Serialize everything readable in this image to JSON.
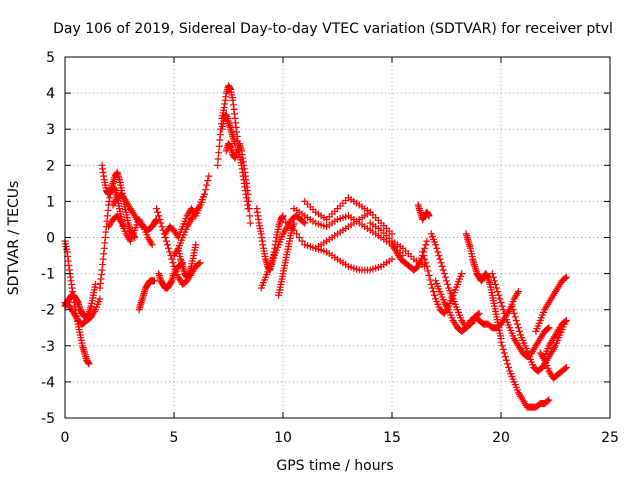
{
  "chart_data": {
    "type": "scatter",
    "title": "Day 106 of 2019, Sidereal Day-to-day VTEC variation (SDTVAR) for receiver ptvl",
    "xlabel": "GPS time / hours",
    "ylabel": "SDTVAR / TECUs",
    "xlim": [
      0,
      25
    ],
    "ylim": [
      -5,
      5
    ],
    "xticks": [
      "0",
      "5",
      "10",
      "15",
      "20",
      "25"
    ],
    "yticks": [
      "-5",
      "-4",
      "-3",
      "-2",
      "-1",
      "0",
      "1",
      "2",
      "3",
      "4",
      "5"
    ],
    "grid": true,
    "marker": "+",
    "color": "#ff0000",
    "series": [
      {
        "name": "s1",
        "x": [
          0.0,
          0.1,
          0.2,
          0.3,
          0.4,
          0.5,
          0.6,
          0.7,
          0.8,
          0.9,
          1.0,
          1.1
        ],
        "y": [
          -0.1,
          -0.4,
          -0.9,
          -1.3,
          -1.7,
          -2.1,
          -2.4,
          -2.7,
          -3.0,
          -3.2,
          -3.4,
          -3.5
        ]
      },
      {
        "name": "s2",
        "x": [
          0.0,
          0.1,
          0.2,
          0.3,
          0.4,
          0.5,
          0.6,
          0.7,
          0.8,
          0.9,
          1.0,
          1.1,
          1.2,
          1.3,
          1.4
        ],
        "y": [
          -1.9,
          -1.8,
          -1.7,
          -1.6,
          -1.6,
          -1.7,
          -1.8,
          -2.0,
          -2.1,
          -2.2,
          -2.2,
          -2.1,
          -1.9,
          -1.6,
          -1.3
        ]
      },
      {
        "name": "s3",
        "x": [
          0.0,
          0.2,
          0.4,
          0.6,
          0.8,
          1.0,
          1.2,
          1.4,
          1.6
        ],
        "y": [
          -1.8,
          -1.9,
          -2.1,
          -2.3,
          -2.4,
          -2.3,
          -2.2,
          -2.0,
          -1.7
        ]
      },
      {
        "name": "s4",
        "x": [
          1.6,
          1.7,
          1.8,
          1.9,
          2.0,
          2.1,
          2.2,
          2.3,
          2.4,
          2.5,
          2.6,
          2.7
        ],
        "y": [
          -1.4,
          -0.9,
          -0.3,
          0.3,
          0.9,
          1.3,
          1.4,
          1.3,
          1.1,
          0.8,
          0.5,
          0.3
        ]
      },
      {
        "name": "s5",
        "x": [
          1.7,
          1.8,
          1.9,
          2.0,
          2.1,
          2.2,
          2.3,
          2.4,
          2.5,
          2.6,
          2.7,
          2.8,
          2.9,
          3.0,
          3.1,
          3.2
        ],
        "y": [
          2.0,
          1.6,
          1.3,
          1.2,
          1.3,
          1.5,
          1.7,
          1.8,
          1.6,
          1.3,
          1.0,
          0.7,
          0.4,
          0.2,
          0.1,
          0.0
        ]
      },
      {
        "name": "s6",
        "x": [
          2.0,
          2.2,
          2.4,
          2.6,
          2.8,
          3.0,
          3.2,
          3.4,
          3.6,
          3.8,
          4.0
        ],
        "y": [
          0.3,
          0.5,
          0.6,
          0.4,
          0.1,
          -0.1,
          0.2,
          0.5,
          0.3,
          0.0,
          -0.2
        ]
      },
      {
        "name": "s7",
        "x": [
          2.2,
          2.4,
          2.6,
          2.8,
          3.0,
          3.2,
          3.4,
          3.6,
          3.8,
          4.0,
          4.1,
          4.2
        ],
        "y": [
          0.9,
          1.1,
          1.2,
          1.0,
          0.8,
          0.6,
          0.4,
          0.3,
          0.2,
          0.3,
          0.4,
          0.5
        ]
      },
      {
        "name": "s8",
        "x": [
          3.4,
          3.5,
          3.6,
          3.7,
          3.8,
          3.9,
          4.0,
          4.1
        ],
        "y": [
          -2.0,
          -1.8,
          -1.6,
          -1.4,
          -1.3,
          -1.2,
          -1.2,
          -1.2
        ]
      },
      {
        "name": "s9",
        "x": [
          4.2,
          4.4,
          4.6,
          4.8,
          5.0,
          5.2,
          5.4,
          5.6,
          5.8,
          6.0,
          6.2
        ],
        "y": [
          0.8,
          0.4,
          0.0,
          -0.4,
          -0.8,
          -1.1,
          -1.3,
          -1.2,
          -1.0,
          -0.8,
          -0.7
        ]
      },
      {
        "name": "s10",
        "x": [
          4.3,
          4.4,
          4.5,
          4.6,
          4.7,
          4.8,
          4.9,
          5.0,
          5.2,
          5.4
        ],
        "y": [
          -1.0,
          -1.2,
          -1.3,
          -1.4,
          -1.4,
          -1.3,
          -1.2,
          -1.0,
          -0.8,
          -0.7
        ]
      },
      {
        "name": "s11",
        "x": [
          4.6,
          4.8,
          5.0,
          5.2,
          5.4,
          5.6,
          5.8,
          6.0,
          6.2,
          6.4
        ],
        "y": [
          0.1,
          0.3,
          0.2,
          0.0,
          0.3,
          0.6,
          0.8,
          0.6,
          0.9,
          1.2
        ]
      },
      {
        "name": "s12",
        "x": [
          5.0,
          5.2,
          5.4,
          5.6,
          5.8,
          6.0,
          6.2,
          6.4,
          6.6
        ],
        "y": [
          -0.5,
          -0.3,
          0.0,
          0.3,
          0.5,
          0.7,
          0.9,
          1.2,
          1.7
        ]
      },
      {
        "name": "s13",
        "x": [
          5.2,
          5.3,
          5.4,
          5.5,
          5.6,
          5.7,
          5.8,
          5.9,
          6.0
        ],
        "y": [
          -0.3,
          -0.6,
          -0.8,
          -1.0,
          -1.1,
          -1.0,
          -0.8,
          -0.5,
          -0.2
        ]
      },
      {
        "name": "s14",
        "x": [
          7.0,
          7.1,
          7.2,
          7.3,
          7.4,
          7.5,
          7.6,
          7.7,
          7.8,
          7.9,
          8.0,
          8.1,
          8.2,
          8.3,
          8.4
        ],
        "y": [
          2.0,
          2.7,
          3.3,
          3.6,
          4.0,
          4.2,
          4.1,
          3.8,
          3.3,
          2.8,
          2.3,
          2.0,
          1.6,
          1.2,
          0.8
        ]
      },
      {
        "name": "s15",
        "x": [
          7.4,
          7.5,
          7.6,
          7.7,
          7.8,
          7.9,
          8.0,
          8.1,
          8.2,
          8.3,
          8.4,
          8.5
        ],
        "y": [
          2.4,
          2.6,
          2.5,
          2.3,
          2.2,
          2.4,
          2.6,
          2.4,
          2.0,
          1.6,
          1.2,
          0.4
        ]
      },
      {
        "name": "s16",
        "x": [
          7.2,
          7.3,
          7.4,
          7.5,
          7.6,
          7.7,
          7.8
        ],
        "y": [
          3.0,
          3.3,
          3.4,
          3.2,
          3.0,
          2.8,
          2.6
        ]
      },
      {
        "name": "s17",
        "x": [
          8.8,
          8.9,
          9.0,
          9.1,
          9.2,
          9.3,
          9.4,
          9.5,
          9.6,
          9.7,
          9.8,
          9.9,
          10.0
        ],
        "y": [
          0.8,
          0.4,
          0.1,
          -0.3,
          -0.6,
          -0.8,
          -0.9,
          -0.7,
          -0.4,
          0.0,
          0.3,
          0.5,
          0.6
        ]
      },
      {
        "name": "s18",
        "x": [
          9.0,
          9.2,
          9.4,
          9.6,
          9.8,
          10.0,
          10.2,
          10.4,
          10.6,
          10.8,
          11.0
        ],
        "y": [
          -1.4,
          -1.1,
          -0.8,
          -0.5,
          -0.2,
          0.1,
          0.3,
          0.5,
          0.6,
          0.5,
          0.4
        ]
      },
      {
        "name": "s19",
        "x": [
          9.8,
          9.9,
          10.0,
          10.1,
          10.2,
          10.3,
          10.4,
          10.5
        ],
        "y": [
          -1.6,
          -1.3,
          -1.0,
          -0.7,
          -0.4,
          -0.1,
          0.2,
          0.4
        ]
      },
      {
        "name": "s20",
        "x": [
          10.0,
          10.5,
          11.0,
          11.5,
          12.0,
          12.5,
          13.0,
          13.5,
          14.0,
          14.5,
          15.0
        ],
        "y": [
          0.5,
          0.2,
          -0.2,
          -0.3,
          -0.4,
          -0.6,
          -0.8,
          -0.9,
          -0.9,
          -0.8,
          -0.6
        ]
      },
      {
        "name": "s21",
        "x": [
          10.5,
          11.0,
          11.5,
          12.0,
          12.5,
          13.0,
          13.5,
          14.0,
          14.5,
          15.0,
          15.5
        ],
        "y": [
          0.8,
          0.6,
          0.4,
          0.3,
          0.5,
          0.6,
          0.4,
          0.2,
          0.0,
          -0.2,
          -0.5
        ]
      },
      {
        "name": "s22",
        "x": [
          11.0,
          11.5,
          12.0,
          12.5,
          13.0,
          13.5,
          14.0,
          14.5,
          15.0
        ],
        "y": [
          1.0,
          0.7,
          0.5,
          0.8,
          1.1,
          0.9,
          0.7,
          0.4,
          0.1
        ]
      },
      {
        "name": "s23",
        "x": [
          11.5,
          12.0,
          12.5,
          13.0,
          13.5,
          14.0
        ],
        "y": [
          -0.3,
          -0.1,
          0.1,
          0.3,
          0.5,
          0.7
        ]
      },
      {
        "name": "s24",
        "x": [
          14.0,
          14.5,
          15.0,
          15.5,
          16.0,
          16.5
        ],
        "y": [
          0.4,
          0.2,
          -0.1,
          -0.3,
          -0.6,
          -0.8
        ]
      },
      {
        "name": "s25",
        "x": [
          15.0,
          15.2,
          15.4,
          15.6,
          15.8,
          16.0,
          16.2,
          16.4,
          16.6
        ],
        "y": [
          -0.2,
          -0.4,
          -0.6,
          -0.7,
          -0.8,
          -0.9,
          -0.8,
          -0.5,
          -0.1
        ]
      },
      {
        "name": "s26",
        "x": [
          16.2,
          16.3,
          16.4,
          16.5,
          16.6,
          16.7
        ],
        "y": [
          0.9,
          0.7,
          0.5,
          0.6,
          0.7,
          0.6
        ]
      },
      {
        "name": "s27",
        "x": [
          16.4,
          16.6,
          16.8,
          17.0,
          17.2,
          17.4,
          17.6,
          17.8,
          18.0,
          18.2
        ],
        "y": [
          -0.4,
          -0.8,
          -1.3,
          -1.7,
          -2.0,
          -2.1,
          -1.9,
          -1.6,
          -1.3,
          -1.0
        ]
      },
      {
        "name": "s28",
        "x": [
          16.8,
          17.0,
          17.2,
          17.4,
          17.6,
          17.8,
          18.0,
          18.2,
          18.4,
          18.6,
          18.8,
          19.0
        ],
        "y": [
          0.1,
          -0.2,
          -0.6,
          -1.0,
          -1.4,
          -1.7,
          -2.0,
          -2.3,
          -2.5,
          -2.4,
          -2.2,
          -2.1
        ]
      },
      {
        "name": "s29",
        "x": [
          17.0,
          17.2,
          17.4,
          17.6,
          17.8,
          18.0,
          18.2,
          18.4,
          18.6,
          18.8
        ],
        "y": [
          -1.2,
          -1.5,
          -1.8,
          -2.0,
          -2.3,
          -2.5,
          -2.6,
          -2.5,
          -2.3,
          -2.3
        ]
      },
      {
        "name": "s30",
        "x": [
          18.4,
          18.5,
          18.6,
          18.7,
          18.8,
          18.9,
          19.0,
          19.1,
          19.2,
          19.3,
          19.4,
          19.5,
          19.6,
          19.7,
          19.8,
          19.9,
          20.0
        ],
        "y": [
          0.1,
          -0.1,
          -0.3,
          -0.6,
          -0.8,
          -1.0,
          -1.1,
          -1.2,
          -1.1,
          -1.0,
          -1.1,
          -1.3,
          -1.6,
          -1.9,
          -2.2,
          -2.5,
          -2.8
        ]
      },
      {
        "name": "s31",
        "x": [
          18.8,
          19.0,
          19.2,
          19.4,
          19.6,
          19.8,
          20.0,
          20.2,
          20.4,
          20.6,
          20.8
        ],
        "y": [
          -2.2,
          -2.3,
          -2.4,
          -2.4,
          -2.5,
          -2.5,
          -2.4,
          -2.2,
          -2.0,
          -1.7,
          -1.5
        ]
      },
      {
        "name": "s32",
        "x": [
          19.6,
          19.8,
          20.0,
          20.2,
          20.4,
          20.6,
          20.8,
          21.0,
          21.2,
          21.4,
          21.6,
          21.8,
          22.0,
          22.2
        ],
        "y": [
          -1.0,
          -1.4,
          -1.8,
          -2.2,
          -2.5,
          -2.8,
          -3.0,
          -3.2,
          -3.3,
          -3.2,
          -3.0,
          -2.8,
          -2.6,
          -2.5
        ]
      },
      {
        "name": "s33",
        "x": [
          20.0,
          20.2,
          20.4,
          20.6,
          20.8,
          21.0,
          21.2,
          21.4,
          21.6,
          21.8,
          22.0,
          22.2
        ],
        "y": [
          -2.9,
          -3.3,
          -3.7,
          -4.0,
          -4.3,
          -4.5,
          -4.7,
          -4.7,
          -4.7,
          -4.6,
          -4.6,
          -4.5
        ]
      },
      {
        "name": "s34",
        "x": [
          20.5,
          20.7,
          20.9,
          21.1,
          21.3,
          21.5,
          21.7,
          21.9,
          22.1,
          22.3,
          22.5,
          22.7,
          22.9
        ],
        "y": [
          -1.9,
          -2.3,
          -2.7,
          -3.0,
          -3.3,
          -3.6,
          -3.7,
          -3.6,
          -3.4,
          -3.2,
          -3.0,
          -2.7,
          -2.4
        ]
      },
      {
        "name": "s35",
        "x": [
          21.6,
          21.8,
          22.0,
          22.2,
          22.4,
          22.6,
          22.8,
          23.0
        ],
        "y": [
          -2.6,
          -2.3,
          -2.0,
          -1.8,
          -1.6,
          -1.4,
          -1.2,
          -1.1
        ]
      },
      {
        "name": "s36",
        "x": [
          21.8,
          22.0,
          22.2,
          22.4,
          22.6,
          22.8,
          23.0
        ],
        "y": [
          -3.2,
          -3.4,
          -3.7,
          -3.9,
          -3.8,
          -3.7,
          -3.6
        ]
      },
      {
        "name": "s37",
        "x": [
          22.0,
          22.2,
          22.4,
          22.6,
          22.8,
          23.0
        ],
        "y": [
          -3.3,
          -3.0,
          -2.8,
          -2.6,
          -2.4,
          -2.3
        ]
      }
    ]
  }
}
